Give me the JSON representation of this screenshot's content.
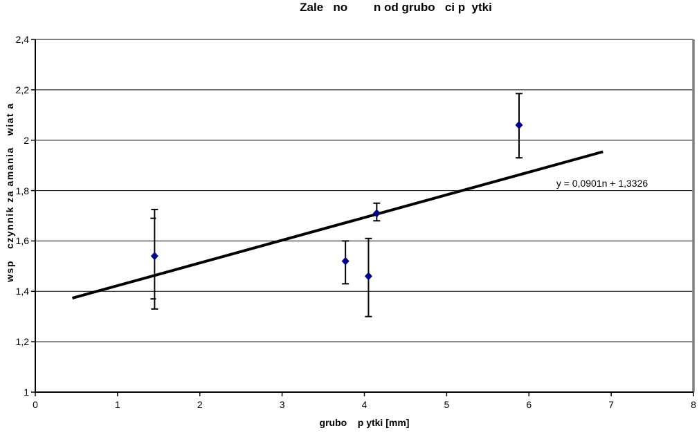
{
  "chart_data": {
    "type": "scatter",
    "title": "Zale   no        n od grubo   ci p  ytki",
    "title_note": "Polish title with missing diacritic glyphs (Zależność n od grubości płytki)",
    "xlabel": "grubo    p ytki [mm]",
    "ylabel": "wsp   czynnik za amania   wiat a",
    "xlim": [
      0,
      8
    ],
    "ylim": [
      1,
      2.4
    ],
    "x_ticks": [
      0,
      1,
      2,
      3,
      4,
      5,
      6,
      7,
      8
    ],
    "x_tick_labels": [
      "0",
      "1",
      "2",
      "3",
      "4",
      "5",
      "6",
      "7",
      "8"
    ],
    "y_ticks": [
      1,
      1.2,
      1.4,
      1.6,
      1.8,
      2,
      2.2,
      2.4
    ],
    "y_tick_labels": [
      "1",
      "1,2",
      "1,4",
      "1,6",
      "1,8",
      "2",
      "2,2",
      "2,4"
    ],
    "grid": "horizontal-only",
    "legend": "none",
    "marker": {
      "shape": "diamond",
      "color": "#000080",
      "size": 11
    },
    "colors": {
      "gridline": "#000000",
      "axis": "#000000",
      "plot_border": "#808080",
      "trendline": "#000000",
      "error_bar": "#000000",
      "background": "#ffffff",
      "text": "#000000"
    },
    "points": [
      {
        "x": 1.45,
        "y": 1.54,
        "err_low": 1.33,
        "err_high": 1.725,
        "err2_low": 1.37,
        "err2_high": 1.69
      },
      {
        "x": 3.77,
        "y": 1.52,
        "err_low": 1.43,
        "err_high": 1.6
      },
      {
        "x": 4.05,
        "y": 1.46,
        "err_low": 1.3,
        "err_high": 1.61
      },
      {
        "x": 4.15,
        "y": 1.71,
        "err_low": 1.68,
        "err_high": 1.75
      },
      {
        "x": 5.88,
        "y": 2.06,
        "err_low": 1.93,
        "err_high": 2.185
      }
    ],
    "trendline": {
      "slope": 0.0901,
      "intercept": 1.3326,
      "x_start": 0.45,
      "x_end": 6.9,
      "label": "y = 0,0901n + 1,3326"
    }
  }
}
